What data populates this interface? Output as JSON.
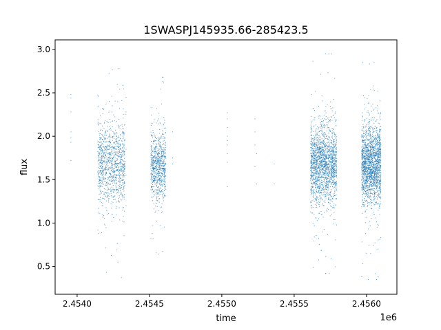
{
  "chart_data": {
    "type": "scatter",
    "title": "1SWASPJ145935.66-285423.5",
    "xlabel": "time",
    "ylabel": "flux",
    "x_offset_label": "1e6",
    "xlim": [
      2453848,
      2456210
    ],
    "ylim": [
      0.18,
      3.11
    ],
    "xticks": [
      2454000,
      2454500,
      2455000,
      2455500,
      2456000
    ],
    "xtick_labels": [
      "2.4540",
      "2.4545",
      "2.4550",
      "2.4555",
      "2.4560"
    ],
    "yticks": [
      0.5,
      1.0,
      1.5,
      2.0,
      2.5,
      3.0
    ],
    "ytick_labels": [
      "0.5",
      "1.0",
      "1.5",
      "2.0",
      "2.5",
      "3.0"
    ],
    "grid": false,
    "marker_color": "#1f77b4",
    "clusters": [
      {
        "time_range": [
          2454143,
          2454333
        ],
        "flux_median": 1.68,
        "flux_spread": 0.24,
        "flux_range": [
          0.32,
          2.98
        ],
        "approx_points": 3500
      },
      {
        "time_range": [
          2454510,
          2454614
        ],
        "flux_median": 1.65,
        "flux_spread": 0.2,
        "flux_range": [
          0.35,
          2.68
        ],
        "approx_points": 2500
      },
      {
        "time_range": [
          2455614,
          2455795
        ],
        "flux_median": 1.68,
        "flux_spread": 0.22,
        "flux_range": [
          0.42,
          2.95
        ],
        "approx_points": 6000
      },
      {
        "time_range": [
          2455967,
          2456100
        ],
        "flux_median": 1.68,
        "flux_spread": 0.22,
        "flux_range": [
          0.35,
          2.85
        ],
        "approx_points": 6000
      }
    ],
    "sparse_points": [
      [
        2453957,
        1.72
      ],
      [
        2453957,
        1.93
      ],
      [
        2453957,
        1.98
      ],
      [
        2453957,
        2.05
      ],
      [
        2453957,
        2.28
      ],
      [
        2453957,
        2.44
      ],
      [
        2453957,
        2.48
      ],
      [
        2454338,
        1.2
      ],
      [
        2454338,
        1.55
      ],
      [
        2454338,
        1.85
      ],
      [
        2454338,
        2.28
      ],
      [
        2454338,
        2.45
      ],
      [
        2454660,
        1.68
      ],
      [
        2454660,
        1.75
      ],
      [
        2454660,
        2.05
      ],
      [
        2455038,
        1.42
      ],
      [
        2455038,
        1.7
      ],
      [
        2455038,
        1.8
      ],
      [
        2455038,
        1.9
      ],
      [
        2455038,
        1.95
      ],
      [
        2455038,
        2.0
      ],
      [
        2455038,
        2.1
      ],
      [
        2455038,
        2.2
      ],
      [
        2455038,
        2.27
      ],
      [
        2455229,
        1.65
      ],
      [
        2455229,
        1.9
      ],
      [
        2455229,
        2.05
      ],
      [
        2455229,
        2.2
      ],
      [
        2455240,
        1.45
      ],
      [
        2455240,
        1.8
      ],
      [
        2455362,
        1.45
      ],
      [
        2455362,
        1.68
      ]
    ]
  }
}
